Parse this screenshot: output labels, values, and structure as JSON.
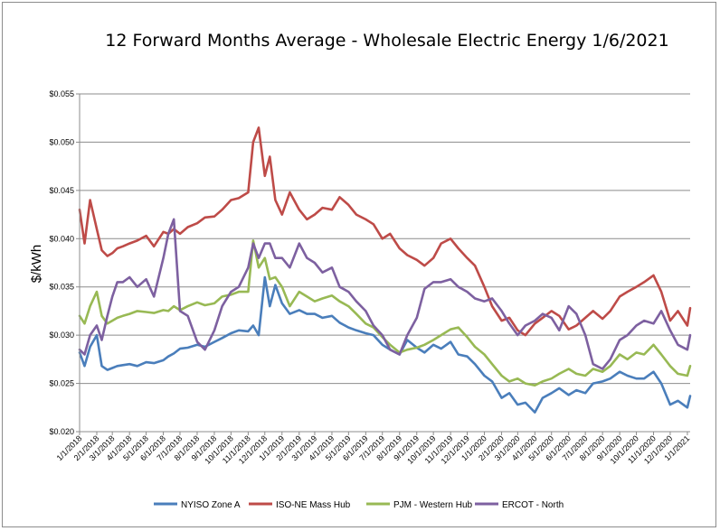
{
  "chart_data": {
    "type": "line",
    "title": "12 Forward Months Average - Wholesale Electric Energy 1/6/2021",
    "xlabel": "",
    "ylabel": "$/kWh",
    "ylim": [
      0.02,
      0.055
    ],
    "yticks": [
      "$0.020",
      "$0.025",
      "$0.030",
      "$0.035",
      "$0.040",
      "$0.045",
      "$0.050",
      "$0.055"
    ],
    "xticks": [
      "1/1/2018",
      "2/1/2018",
      "3/1/2018",
      "4/1/2018",
      "5/1/2018",
      "6/1/2018",
      "7/1/2018",
      "8/1/2018",
      "9/1/2018",
      "10/1/2018",
      "11/1/2018",
      "12/1/2018",
      "1/1/2019",
      "2/1/2019",
      "3/1/2019",
      "4/1/2019",
      "5/1/2019",
      "6/1/2019",
      "7/1/2019",
      "8/1/2019",
      "9/1/2019",
      "10/1/2019",
      "11/1/2019",
      "12/1/2019",
      "1/1/2020",
      "2/1/2020",
      "3/1/2020",
      "4/1/2020",
      "5/1/2020",
      "6/1/2020",
      "7/1/2020",
      "8/1/2020",
      "9/1/2020",
      "10/1/2020",
      "11/1/2020",
      "12/1/2020",
      "1/1/2021"
    ],
    "grid": true,
    "legend_position": "bottom",
    "x_dates": [
      "2018-01-01",
      "2018-01-10",
      "2018-01-20",
      "2018-02-01",
      "2018-02-10",
      "2018-02-20",
      "2018-03-01",
      "2018-03-10",
      "2018-03-20",
      "2018-04-01",
      "2018-04-15",
      "2018-05-01",
      "2018-05-15",
      "2018-06-01",
      "2018-06-10",
      "2018-06-20",
      "2018-07-01",
      "2018-07-15",
      "2018-08-01",
      "2018-08-15",
      "2018-09-01",
      "2018-09-15",
      "2018-10-01",
      "2018-10-15",
      "2018-11-01",
      "2018-11-10",
      "2018-11-20",
      "2018-12-01",
      "2018-12-10",
      "2018-12-20",
      "2019-01-01",
      "2019-01-15",
      "2019-02-01",
      "2019-02-15",
      "2019-03-01",
      "2019-03-15",
      "2019-04-01",
      "2019-04-15",
      "2019-05-01",
      "2019-05-15",
      "2019-06-01",
      "2019-06-15",
      "2019-07-01",
      "2019-07-15",
      "2019-08-01",
      "2019-08-15",
      "2019-09-01",
      "2019-09-15",
      "2019-10-01",
      "2019-10-15",
      "2019-11-01",
      "2019-11-15",
      "2019-12-01",
      "2019-12-15",
      "2020-01-01",
      "2020-01-15",
      "2020-02-01",
      "2020-02-15",
      "2020-03-01",
      "2020-03-15",
      "2020-04-01",
      "2020-04-15",
      "2020-05-01",
      "2020-05-15",
      "2020-06-01",
      "2020-06-15",
      "2020-07-01",
      "2020-07-15",
      "2020-08-01",
      "2020-08-15",
      "2020-09-01",
      "2020-09-15",
      "2020-10-01",
      "2020-10-15",
      "2020-11-01",
      "2020-11-15",
      "2020-12-01",
      "2020-12-15",
      "2021-01-01",
      "2021-01-06"
    ],
    "series": [
      {
        "name": "NYISO Zone A",
        "color": "#4a7ebb",
        "values": [
          0.0282,
          0.0268,
          0.0288,
          0.03,
          0.0268,
          0.0264,
          0.0266,
          0.0268,
          0.0269,
          0.027,
          0.0268,
          0.0272,
          0.0271,
          0.0274,
          0.0278,
          0.0281,
          0.0286,
          0.0287,
          0.029,
          0.0288,
          0.0293,
          0.0297,
          0.0302,
          0.0305,
          0.0304,
          0.031,
          0.03,
          0.036,
          0.033,
          0.0352,
          0.0333,
          0.0322,
          0.0326,
          0.0322,
          0.0322,
          0.0318,
          0.032,
          0.0313,
          0.0308,
          0.0305,
          0.0302,
          0.03,
          0.029,
          0.0285,
          0.028,
          0.0295,
          0.0287,
          0.0282,
          0.029,
          0.0286,
          0.0293,
          0.028,
          0.0278,
          0.027,
          0.0258,
          0.0252,
          0.0235,
          0.024,
          0.0228,
          0.023,
          0.022,
          0.0235,
          0.024,
          0.0245,
          0.0238,
          0.0243,
          0.024,
          0.025,
          0.0252,
          0.0255,
          0.0262,
          0.0258,
          0.0255,
          0.0255,
          0.0262,
          0.025,
          0.0228,
          0.0232,
          0.0225,
          0.0237
        ]
      },
      {
        "name": "ISO-NE Mass Hub",
        "color": "#be4b48",
        "values": [
          0.043,
          0.0395,
          0.044,
          0.041,
          0.0388,
          0.0382,
          0.0385,
          0.039,
          0.0392,
          0.0395,
          0.0398,
          0.0403,
          0.0392,
          0.0407,
          0.0405,
          0.041,
          0.0405,
          0.0412,
          0.0416,
          0.0422,
          0.0423,
          0.043,
          0.044,
          0.0442,
          0.0448,
          0.05,
          0.0515,
          0.0465,
          0.0485,
          0.044,
          0.0425,
          0.0448,
          0.043,
          0.042,
          0.0425,
          0.0432,
          0.043,
          0.0443,
          0.0435,
          0.0425,
          0.042,
          0.0415,
          0.04,
          0.0405,
          0.039,
          0.0383,
          0.0378,
          0.0372,
          0.038,
          0.0395,
          0.04,
          0.039,
          0.038,
          0.0372,
          0.035,
          0.033,
          0.0315,
          0.0318,
          0.0305,
          0.03,
          0.0312,
          0.0318,
          0.0325,
          0.032,
          0.0306,
          0.031,
          0.0318,
          0.0325,
          0.0317,
          0.0325,
          0.034,
          0.0345,
          0.035,
          0.0355,
          0.0362,
          0.0345,
          0.0315,
          0.0325,
          0.031,
          0.0328
        ]
      },
      {
        "name": "PJM - Western Hub",
        "color": "#98b954",
        "values": [
          0.032,
          0.0312,
          0.033,
          0.0345,
          0.032,
          0.0312,
          0.0315,
          0.0318,
          0.032,
          0.0322,
          0.0325,
          0.0324,
          0.0323,
          0.0326,
          0.0325,
          0.033,
          0.0326,
          0.033,
          0.0334,
          0.0331,
          0.0333,
          0.034,
          0.0342,
          0.0345,
          0.0345,
          0.0398,
          0.037,
          0.038,
          0.0358,
          0.036,
          0.035,
          0.033,
          0.0345,
          0.034,
          0.0335,
          0.0338,
          0.0341,
          0.0335,
          0.033,
          0.0322,
          0.0312,
          0.0308,
          0.0298,
          0.029,
          0.0282,
          0.0285,
          0.0287,
          0.029,
          0.0295,
          0.03,
          0.0306,
          0.0308,
          0.0298,
          0.0288,
          0.028,
          0.027,
          0.0258,
          0.0252,
          0.0255,
          0.025,
          0.0248,
          0.0252,
          0.0255,
          0.026,
          0.0265,
          0.026,
          0.0258,
          0.0265,
          0.0262,
          0.0268,
          0.028,
          0.0275,
          0.0282,
          0.028,
          0.029,
          0.028,
          0.0268,
          0.026,
          0.0258,
          0.0268
        ]
      },
      {
        "name": "ERCOT - North",
        "color": "#7d60a0",
        "values": [
          0.0285,
          0.028,
          0.03,
          0.031,
          0.0295,
          0.032,
          0.034,
          0.0355,
          0.0355,
          0.036,
          0.035,
          0.0358,
          0.034,
          0.038,
          0.0405,
          0.042,
          0.0325,
          0.032,
          0.0293,
          0.0285,
          0.0305,
          0.033,
          0.0345,
          0.035,
          0.037,
          0.0395,
          0.038,
          0.0395,
          0.0395,
          0.038,
          0.038,
          0.037,
          0.0395,
          0.038,
          0.0375,
          0.0365,
          0.037,
          0.035,
          0.0345,
          0.0335,
          0.0325,
          0.031,
          0.03,
          0.0285,
          0.028,
          0.03,
          0.0318,
          0.0348,
          0.0355,
          0.0355,
          0.0358,
          0.035,
          0.0345,
          0.0338,
          0.0335,
          0.0338,
          0.0325,
          0.0312,
          0.03,
          0.031,
          0.0315,
          0.0322,
          0.0318,
          0.0305,
          0.033,
          0.0322,
          0.03,
          0.027,
          0.0265,
          0.0275,
          0.0295,
          0.03,
          0.031,
          0.0315,
          0.0312,
          0.0325,
          0.0305,
          0.029,
          0.0285,
          0.03
        ]
      }
    ]
  }
}
